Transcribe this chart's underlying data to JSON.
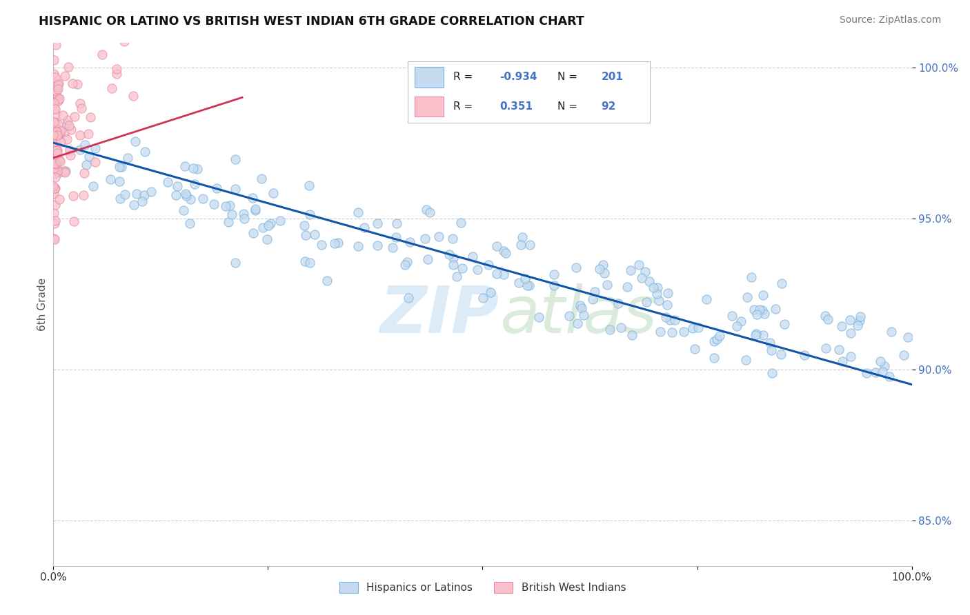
{
  "title": "HISPANIC OR LATINO VS BRITISH WEST INDIAN 6TH GRADE CORRELATION CHART",
  "source": "Source: ZipAtlas.com",
  "ylabel": "6th Grade",
  "xlim": [
    0.0,
    1.0
  ],
  "ylim": [
    0.835,
    1.008
  ],
  "yticks": [
    0.85,
    0.9,
    0.95,
    1.0
  ],
  "ytick_labels": [
    "85.0%",
    "90.0%",
    "95.0%",
    "100.0%"
  ],
  "xticks": [
    0.0,
    0.25,
    0.5,
    0.75,
    1.0
  ],
  "xtick_labels": [
    "0.0%",
    "",
    "",
    "",
    "100.0%"
  ],
  "legend_r1": "-0.934",
  "legend_n1": "201",
  "legend_r2": "0.351",
  "legend_n2": "92",
  "blue_face": "#c5daef",
  "blue_edge": "#7ab3d9",
  "pink_face": "#f9c0cc",
  "pink_edge": "#e88aa0",
  "trend_blue": "#1155aa",
  "trend_pink": "#cc3355",
  "watermark_zip": "ZIP",
  "watermark_atlas": "atlas",
  "background": "#ffffff",
  "grid_color": "#cccccc",
  "title_color": "#111111",
  "source_color": "#777777",
  "tick_color": "#4472c4",
  "ylabel_color": "#555555"
}
